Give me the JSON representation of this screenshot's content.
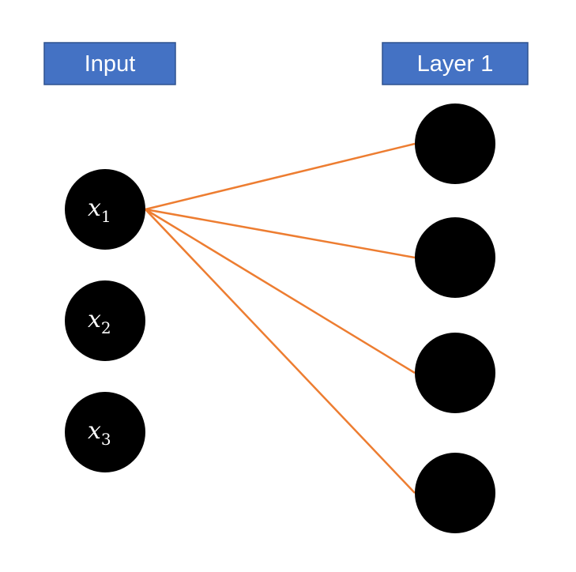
{
  "headers": {
    "input": "Input",
    "layer1": "Layer 1"
  },
  "input_nodes": [
    {
      "symbol": "x",
      "subscript": "1"
    },
    {
      "symbol": "x",
      "subscript": "2"
    },
    {
      "symbol": "x",
      "subscript": "3"
    }
  ],
  "layer1_node_count": 4,
  "connections": [
    {
      "from": 0,
      "to": 0
    },
    {
      "from": 0,
      "to": 1
    },
    {
      "from": 0,
      "to": 2
    },
    {
      "from": 0,
      "to": 3
    }
  ],
  "colors": {
    "header_fill": "#4472C4",
    "header_border": "#2F528F",
    "node_fill": "#000000",
    "edge_color": "#ED7D31",
    "label_color": "#ffffff"
  }
}
